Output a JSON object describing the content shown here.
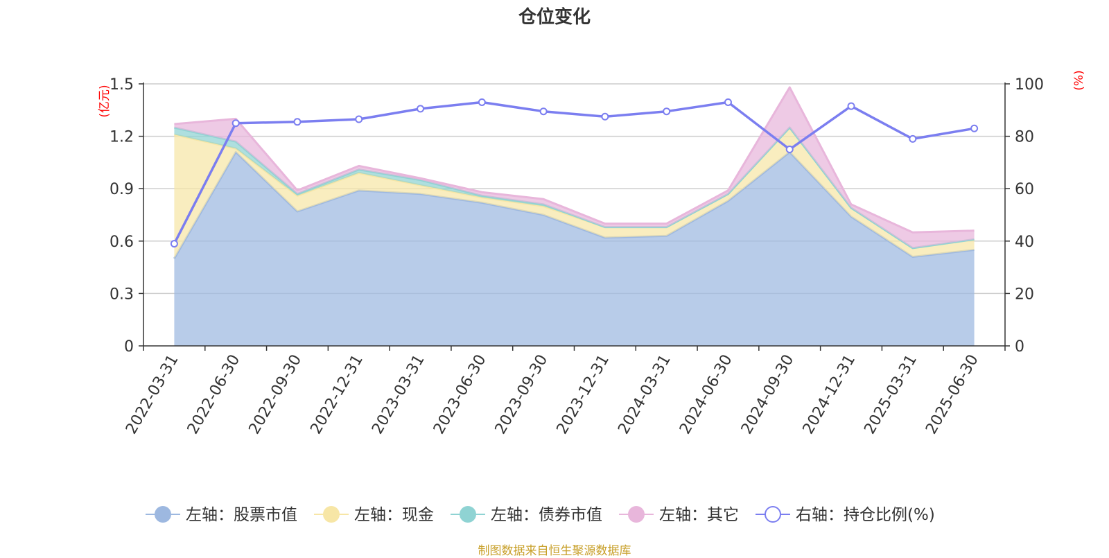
{
  "chart_data": {
    "type": "area",
    "title": "仓位变化",
    "x": [
      "2022-03-31",
      "2022-06-30",
      "2022-09-30",
      "2022-12-31",
      "2023-03-31",
      "2023-06-30",
      "2023-09-30",
      "2023-12-31",
      "2024-03-31",
      "2024-06-30",
      "2024-09-30",
      "2024-12-31",
      "2025-03-31",
      "2025-06-30"
    ],
    "left_axis": {
      "unit_label": "(亿元)",
      "ticks": [
        "0",
        "0.3",
        "0.6",
        "0.9",
        "1.2",
        "1.5"
      ],
      "ylim": [
        0,
        1.5
      ]
    },
    "right_axis": {
      "unit_label": "(%)",
      "ticks": [
        "0",
        "20",
        "40",
        "60",
        "80",
        "100"
      ],
      "ylim": [
        0,
        100
      ]
    },
    "stacked_series": [
      {
        "name": "左轴：股票市值",
        "color": "#9db8e0",
        "values": [
          0.5,
          1.11,
          0.77,
          0.89,
          0.87,
          0.82,
          0.75,
          0.62,
          0.63,
          0.83,
          1.11,
          0.74,
          0.51,
          0.55
        ]
      },
      {
        "name": "左轴：现金",
        "color": "#f7e6a6",
        "values": [
          0.71,
          0.02,
          0.09,
          0.1,
          0.05,
          0.03,
          0.05,
          0.06,
          0.05,
          0.04,
          0.14,
          0.05,
          0.05,
          0.06
        ]
      },
      {
        "name": "左轴：债券市值",
        "color": "#8fd3d3",
        "values": [
          0.04,
          0.04,
          0.01,
          0.02,
          0.03,
          0.01,
          0.01,
          0.0,
          0.0,
          0.0,
          0.0,
          0.0,
          0.0,
          0.0
        ]
      },
      {
        "name": "左轴：其它",
        "color": "#e8b6db",
        "values": [
          0.02,
          0.13,
          0.02,
          0.02,
          0.01,
          0.02,
          0.03,
          0.02,
          0.02,
          0.02,
          0.23,
          0.02,
          0.09,
          0.05
        ]
      }
    ],
    "line_series": {
      "name": "右轴：持仓比例(%)",
      "color": "#7b7ef0",
      "values": [
        39,
        85,
        85.5,
        86.5,
        90.5,
        93,
        89.5,
        87.5,
        89.5,
        93,
        75,
        91.5,
        79,
        83
      ]
    },
    "grid": true,
    "legend_position": "bottom"
  },
  "footer": {
    "text": "制图数据来自恒生聚源数据库",
    "color": "#c8a02a"
  }
}
